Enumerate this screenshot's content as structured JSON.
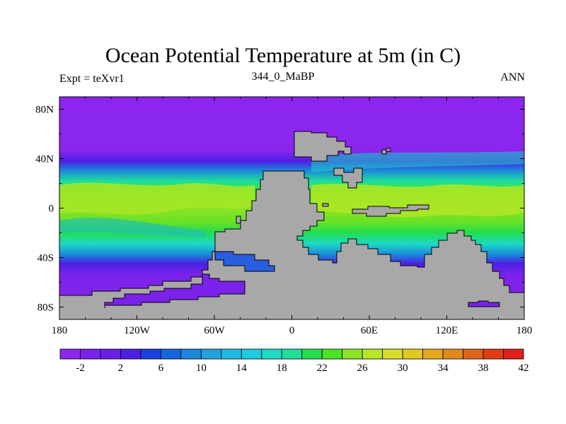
{
  "chart_data": {
    "type": "heatmap",
    "title": "Ocean Potential Temperature at 5m (in C)",
    "left_label": "Expt = teXvr1",
    "center_label": "344_0_MaBP",
    "right_label": "ANN",
    "x_axis": {
      "range": [
        -180,
        180
      ],
      "ticks": [
        -180,
        -120,
        -60,
        0,
        60,
        120,
        180
      ],
      "tick_labels": [
        "180",
        "120W",
        "60W",
        "0",
        "60E",
        "120E",
        "180"
      ]
    },
    "y_axis": {
      "range": [
        -90,
        90
      ],
      "ticks": [
        80,
        40,
        0,
        -40,
        -80
      ],
      "tick_labels": [
        "80N",
        "40N",
        "0",
        "40S",
        "80S"
      ]
    },
    "colorbar": {
      "colors": [
        "#8c26ee",
        "#7a22ea",
        "#6a1ee6",
        "#4d1fe2",
        "#1d3fe0",
        "#1465dc",
        "#1c86dc",
        "#22a2de",
        "#20bae0",
        "#1fcbe0",
        "#1edac5",
        "#1ee09a",
        "#24dc4e",
        "#4ee226",
        "#8ce426",
        "#b8e626",
        "#d6de2c",
        "#e0c81e",
        "#e4a81c",
        "#e08a1c",
        "#e0641c",
        "#e03c16",
        "#e0201a"
      ],
      "tick_labels": [
        "-2",
        "2",
        "6",
        "10",
        "14",
        "18",
        "22",
        "26",
        "30",
        "34",
        "38",
        "42"
      ]
    },
    "land_color": "#a8a8a8"
  }
}
